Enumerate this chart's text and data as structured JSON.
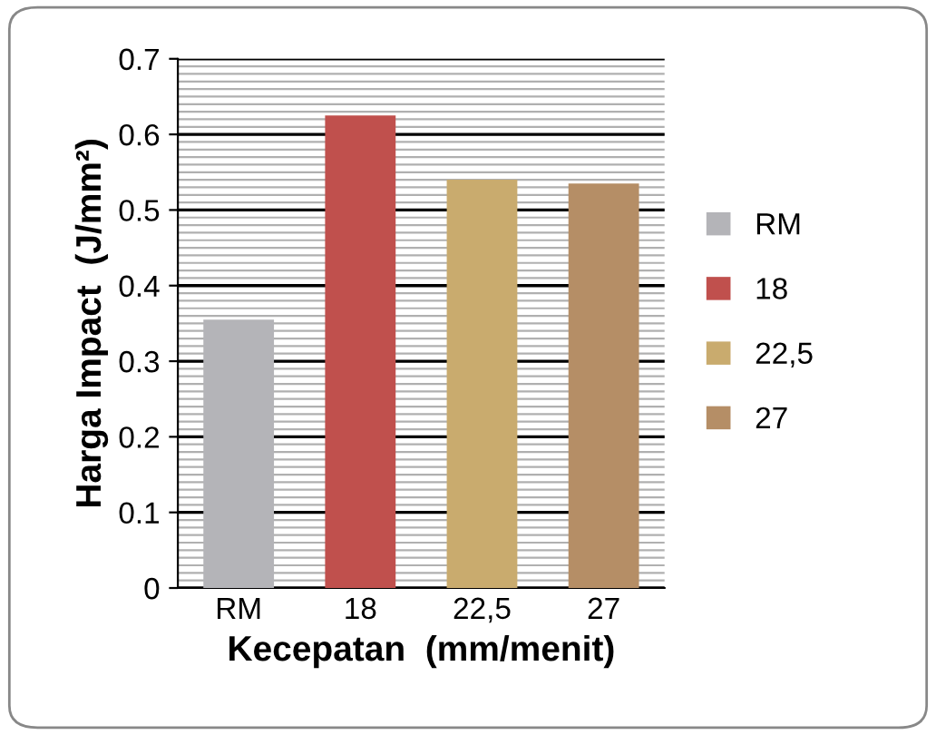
{
  "chart_data": {
    "type": "bar",
    "xlabel": "Kecepatan  (mm/menit)",
    "ylabel": "Harga Impact  (J/mm²)",
    "categories": [
      "RM",
      "18",
      "22,5",
      "27"
    ],
    "series": [
      {
        "name": "RM",
        "color": "#b4b4b8",
        "values": [
          0.355,
          null,
          null,
          null
        ]
      },
      {
        "name": "18",
        "color": "#c0504d",
        "values": [
          null,
          0.625,
          null,
          null
        ]
      },
      {
        "name": "22,5",
        "color": "#c9ab6e",
        "values": [
          null,
          null,
          0.54,
          null
        ]
      },
      {
        "name": "27",
        "color": "#b58e66",
        "values": [
          null,
          null,
          null,
          0.535
        ]
      }
    ],
    "ylim": [
      0,
      0.7
    ],
    "yticks": [
      0,
      0.1,
      0.2,
      0.3,
      0.4,
      0.5,
      0.6,
      0.7
    ],
    "grid": "y",
    "legend": "right"
  }
}
